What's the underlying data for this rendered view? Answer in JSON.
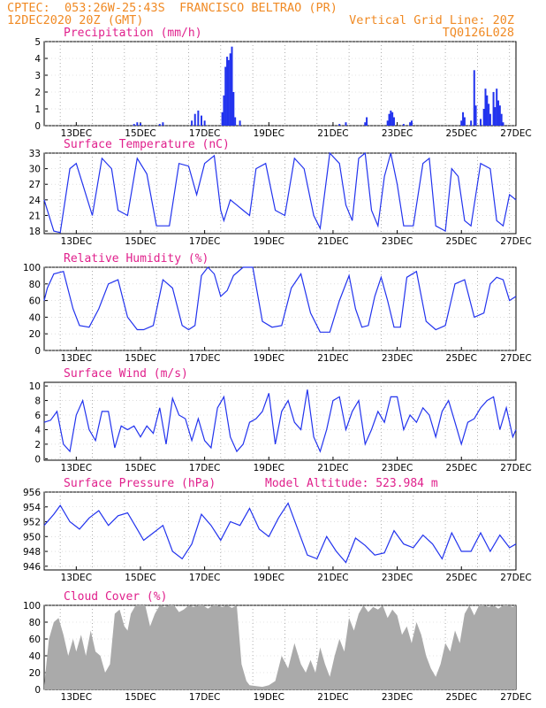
{
  "header": {
    "line1_left": "CPTEC:  053:26W-25:43S  FRANCISCO BELTRAO (PR)",
    "line2_left": "12DEC2020 20Z (GMT)",
    "line2_right": "Vertical Grid Line: 20Z",
    "line3_right": "TQ0126L028"
  },
  "colors": {
    "header": "#f08a24",
    "title": "#e0208c",
    "series": "#2233ee",
    "cloud": "#aaaaaa"
  },
  "chart_data": [
    {
      "type": "bar",
      "title": "Precipitation (mm/h)",
      "ylim": [
        0,
        5
      ],
      "yticks": [
        0,
        1,
        2,
        3,
        4,
        5
      ],
      "xticks": [
        "13DEC",
        "15DEC",
        "17DEC",
        "19DEC",
        "21DEC",
        "23DEC",
        "25DEC",
        "27DEC"
      ],
      "xlim_days": [
        0,
        14.7
      ],
      "bars": [
        [
          2.8,
          0.1
        ],
        [
          2.9,
          0.2
        ],
        [
          3.0,
          0.15
        ],
        [
          3.6,
          0.1
        ],
        [
          3.7,
          0.2
        ],
        [
          4.6,
          0.3
        ],
        [
          4.7,
          0.7
        ],
        [
          4.8,
          0.9
        ],
        [
          4.9,
          0.6
        ],
        [
          5.0,
          0.3
        ],
        [
          5.55,
          0.8
        ],
        [
          5.6,
          1.8
        ],
        [
          5.65,
          3.5
        ],
        [
          5.7,
          4.1
        ],
        [
          5.75,
          3.9
        ],
        [
          5.8,
          4.3
        ],
        [
          5.85,
          4.7
        ],
        [
          5.9,
          2.0
        ],
        [
          5.95,
          0.5
        ],
        [
          6.1,
          0.3
        ],
        [
          9.2,
          0.1
        ],
        [
          9.4,
          0.2
        ],
        [
          10.0,
          0.2
        ],
        [
          10.05,
          0.5
        ],
        [
          10.7,
          0.3
        ],
        [
          10.75,
          0.7
        ],
        [
          10.8,
          0.9
        ],
        [
          10.85,
          0.8
        ],
        [
          10.9,
          0.5
        ],
        [
          11.2,
          0.1
        ],
        [
          11.4,
          0.2
        ],
        [
          11.45,
          0.3
        ],
        [
          13.0,
          0.3
        ],
        [
          13.05,
          0.8
        ],
        [
          13.1,
          0.5
        ],
        [
          13.3,
          0.3
        ],
        [
          13.4,
          3.3
        ],
        [
          13.45,
          1.2
        ],
        [
          13.6,
          0.4
        ],
        [
          13.7,
          1.0
        ],
        [
          13.75,
          2.2
        ],
        [
          13.8,
          1.8
        ],
        [
          13.85,
          1.3
        ],
        [
          13.9,
          0.7
        ],
        [
          14.0,
          2.0
        ],
        [
          14.05,
          1.1
        ],
        [
          14.1,
          2.2
        ],
        [
          14.15,
          1.5
        ],
        [
          14.2,
          1.2
        ],
        [
          14.25,
          0.7
        ],
        [
          14.3,
          0.2
        ]
      ]
    },
    {
      "type": "line",
      "title": "Surface Temperature (nC)",
      "ylim": [
        17.5,
        33
      ],
      "yticks": [
        18,
        21,
        24,
        27,
        30,
        33
      ],
      "xticks": [
        "13DEC",
        "15DEC",
        "17DEC",
        "19DEC",
        "21DEC",
        "23DEC",
        "25DEC",
        "27DEC"
      ],
      "xlim_days": [
        0,
        14.7
      ],
      "x": [
        0,
        0.1,
        0.3,
        0.5,
        0.8,
        1.0,
        1.2,
        1.5,
        1.8,
        2.1,
        2.3,
        2.6,
        2.9,
        3.2,
        3.5,
        3.9,
        4.2,
        4.5,
        4.75,
        5.0,
        5.3,
        5.5,
        5.6,
        5.8,
        6.0,
        6.2,
        6.4,
        6.6,
        6.9,
        7.2,
        7.5,
        7.8,
        8.1,
        8.4,
        8.6,
        8.9,
        9.2,
        9.4,
        9.6,
        9.8,
        10.0,
        10.2,
        10.4,
        10.6,
        10.8,
        11.0,
        11.2,
        11.5,
        11.8,
        12.0,
        12.2,
        12.5,
        12.7,
        12.9,
        13.1,
        13.3,
        13.6,
        13.9,
        14.1,
        14.3,
        14.5,
        14.7
      ],
      "y": [
        24,
        22,
        18,
        17.7,
        30,
        31,
        27,
        21,
        32,
        30,
        22,
        21,
        32,
        29,
        19,
        19,
        31,
        30.5,
        25,
        31,
        32.5,
        22,
        20,
        24,
        23,
        22,
        21,
        30,
        31,
        22,
        21,
        32,
        30,
        21,
        18.5,
        33,
        31,
        23,
        20,
        32,
        33,
        22,
        19,
        28.5,
        33,
        27,
        19,
        19,
        31,
        32,
        19,
        18,
        30,
        28.5,
        20,
        19,
        31,
        30,
        20,
        19,
        25,
        24
      ]
    },
    {
      "type": "line",
      "title": "Relative Humidity (%)",
      "ylim": [
        0,
        100
      ],
      "yticks": [
        0,
        20,
        40,
        60,
        80,
        100
      ],
      "xticks": [
        "13DEC",
        "15DEC",
        "17DEC",
        "19DEC",
        "21DEC",
        "23DEC",
        "25DEC",
        "27DEC"
      ],
      "xlim_days": [
        0,
        14.7
      ],
      "x": [
        0,
        0.1,
        0.3,
        0.6,
        0.9,
        1.1,
        1.4,
        1.7,
        2.0,
        2.3,
        2.6,
        2.9,
        3.1,
        3.4,
        3.7,
        4.0,
        4.3,
        4.5,
        4.7,
        4.9,
        5.1,
        5.3,
        5.5,
        5.7,
        5.9,
        6.2,
        6.5,
        6.8,
        7.1,
        7.4,
        7.7,
        8.0,
        8.3,
        8.6,
        8.9,
        9.2,
        9.5,
        9.7,
        9.9,
        10.1,
        10.3,
        10.5,
        10.7,
        10.9,
        11.1,
        11.3,
        11.6,
        11.9,
        12.2,
        12.5,
        12.8,
        13.1,
        13.4,
        13.7,
        13.9,
        14.1,
        14.3,
        14.5,
        14.7
      ],
      "y": [
        60,
        75,
        92,
        95,
        50,
        30,
        28,
        50,
        80,
        85,
        40,
        25,
        25,
        30,
        85,
        75,
        30,
        25,
        30,
        90,
        100,
        92,
        65,
        72,
        90,
        100,
        100,
        35,
        28,
        30,
        75,
        92,
        45,
        22,
        22,
        60,
        90,
        50,
        28,
        30,
        65,
        88,
        60,
        28,
        28,
        88,
        95,
        35,
        25,
        30,
        80,
        85,
        40,
        45,
        80,
        88,
        85,
        60,
        65
      ]
    },
    {
      "type": "line",
      "title": "Surface Wind (m/s)",
      "ylim": [
        -0.2,
        10.5
      ],
      "yticks": [
        0,
        2,
        4,
        6,
        8,
        10
      ],
      "xticks": [
        "13DEC",
        "15DEC",
        "17DEC",
        "19DEC",
        "21DEC",
        "23DEC",
        "25DEC",
        "27DEC"
      ],
      "xlim_days": [
        0,
        14.7
      ],
      "x": [
        0,
        0.2,
        0.4,
        0.6,
        0.8,
        1.0,
        1.2,
        1.4,
        1.6,
        1.8,
        2.0,
        2.2,
        2.4,
        2.6,
        2.8,
        3.0,
        3.2,
        3.4,
        3.6,
        3.8,
        4.0,
        4.2,
        4.4,
        4.6,
        4.8,
        5.0,
        5.2,
        5.4,
        5.6,
        5.8,
        6.0,
        6.2,
        6.4,
        6.6,
        6.8,
        7.0,
        7.2,
        7.4,
        7.6,
        7.8,
        8.0,
        8.2,
        8.4,
        8.6,
        8.8,
        9.0,
        9.2,
        9.4,
        9.6,
        9.8,
        10.0,
        10.2,
        10.4,
        10.6,
        10.8,
        11.0,
        11.2,
        11.4,
        11.6,
        11.8,
        12.0,
        12.2,
        12.4,
        12.6,
        12.8,
        13.0,
        13.2,
        13.4,
        13.6,
        13.8,
        14.0,
        14.2,
        14.4,
        14.6,
        14.7
      ],
      "y": [
        5,
        5.3,
        6.5,
        2,
        1,
        6,
        8,
        4,
        2.5,
        6.5,
        6.5,
        1.5,
        4.5,
        4,
        4.5,
        3,
        4.5,
        3.5,
        7,
        2,
        8.3,
        6,
        5.5,
        2.5,
        5.5,
        2.5,
        1.5,
        7,
        8.5,
        3,
        1,
        2,
        5,
        5.5,
        6.5,
        9,
        2,
        6.5,
        8,
        5,
        4,
        9.5,
        3,
        1,
        4,
        8,
        8.5,
        4,
        6.5,
        8,
        2,
        4,
        6.5,
        5,
        8.5,
        8.5,
        4,
        6,
        5,
        7,
        6,
        3,
        6.5,
        8,
        5,
        2,
        5,
        5.5,
        7,
        8,
        8.5,
        4,
        7,
        3,
        4
      ]
    },
    {
      "type": "line",
      "title": "Surface Pressure (hPa)",
      "annotation": "Model Altitude: 523.984 m",
      "ylim": [
        945.5,
        956
      ],
      "yticks": [
        946,
        948,
        950,
        952,
        954,
        956
      ],
      "xticks": [
        "13DEC",
        "15DEC",
        "17DEC",
        "19DEC",
        "21DEC",
        "23DEC",
        "25DEC",
        "27DEC"
      ],
      "xlim_days": [
        0,
        14.7
      ],
      "x": [
        0,
        0.3,
        0.5,
        0.8,
        1.1,
        1.4,
        1.7,
        2.0,
        2.3,
        2.6,
        2.9,
        3.1,
        3.4,
        3.7,
        4.0,
        4.3,
        4.6,
        4.9,
        5.2,
        5.5,
        5.8,
        6.1,
        6.4,
        6.7,
        7.0,
        7.3,
        7.6,
        7.9,
        8.2,
        8.5,
        8.8,
        9.1,
        9.4,
        9.7,
        10.0,
        10.3,
        10.6,
        10.9,
        11.2,
        11.5,
        11.8,
        12.1,
        12.4,
        12.7,
        13.0,
        13.3,
        13.6,
        13.9,
        14.2,
        14.5,
        14.7
      ],
      "y": [
        951.5,
        953,
        954.2,
        952,
        951,
        952.5,
        953.5,
        951.5,
        952.8,
        953.2,
        951,
        949.5,
        950.5,
        951.5,
        948,
        947,
        949,
        953,
        951.5,
        949.5,
        952,
        951.5,
        953.8,
        951,
        950,
        952.5,
        954.5,
        951,
        947.5,
        947,
        950,
        948,
        946.5,
        949.8,
        948.8,
        947.5,
        947.8,
        950.8,
        949,
        948.5,
        950.2,
        949,
        947,
        950.5,
        948,
        948,
        950.5,
        948,
        950.2,
        948.5,
        949
      ]
    },
    {
      "type": "area",
      "title": "Cloud Cover (%)",
      "ylim": [
        0,
        100
      ],
      "yticks": [
        0,
        20,
        40,
        60,
        80,
        100
      ],
      "xticks": [
        "13DEC",
        "15DEC",
        "17DEC",
        "19DEC",
        "21DEC",
        "23DEC",
        "25DEC",
        "27DEC"
      ],
      "xlim_days": [
        0,
        14.7
      ],
      "x": [
        0,
        0.15,
        0.3,
        0.45,
        0.6,
        0.75,
        0.9,
        1.0,
        1.15,
        1.3,
        1.45,
        1.6,
        1.75,
        1.9,
        2.05,
        2.2,
        2.35,
        2.5,
        2.6,
        2.7,
        2.85,
        3.0,
        3.15,
        3.3,
        3.45,
        3.6,
        3.75,
        3.9,
        4.05,
        4.2,
        4.35,
        4.5,
        4.65,
        4.8,
        4.95,
        5.1,
        5.25,
        5.4,
        5.55,
        5.7,
        5.85,
        6.0,
        6.15,
        6.3,
        6.4,
        6.6,
        6.8,
        7.0,
        7.2,
        7.4,
        7.6,
        7.8,
        8.0,
        8.15,
        8.3,
        8.45,
        8.6,
        8.75,
        8.9,
        9.05,
        9.2,
        9.35,
        9.5,
        9.65,
        9.8,
        9.95,
        10.1,
        10.25,
        10.4,
        10.55,
        10.7,
        10.85,
        11.0,
        11.15,
        11.3,
        11.45,
        11.6,
        11.75,
        11.9,
        12.05,
        12.2,
        12.35,
        12.5,
        12.65,
        12.8,
        12.95,
        13.1,
        13.25,
        13.4,
        13.55,
        13.7,
        13.85,
        14.0,
        14.15,
        14.3,
        14.45,
        14.6,
        14.7
      ],
      "y": [
        5,
        60,
        80,
        85,
        65,
        40,
        60,
        45,
        65,
        40,
        70,
        45,
        40,
        20,
        30,
        90,
        95,
        75,
        70,
        90,
        100,
        100,
        100,
        75,
        90,
        100,
        98,
        100,
        100,
        92,
        95,
        100,
        98,
        100,
        100,
        96,
        100,
        100,
        98,
        100,
        97,
        100,
        30,
        10,
        5,
        4,
        3,
        5,
        10,
        40,
        25,
        55,
        30,
        20,
        35,
        20,
        50,
        30,
        15,
        40,
        60,
        45,
        85,
        70,
        90,
        100,
        92,
        98,
        95,
        100,
        85,
        95,
        88,
        65,
        75,
        55,
        80,
        65,
        40,
        25,
        15,
        30,
        55,
        45,
        70,
        55,
        90,
        100,
        88,
        100,
        100,
        98,
        100,
        96,
        100,
        100,
        98,
        100
      ]
    }
  ]
}
